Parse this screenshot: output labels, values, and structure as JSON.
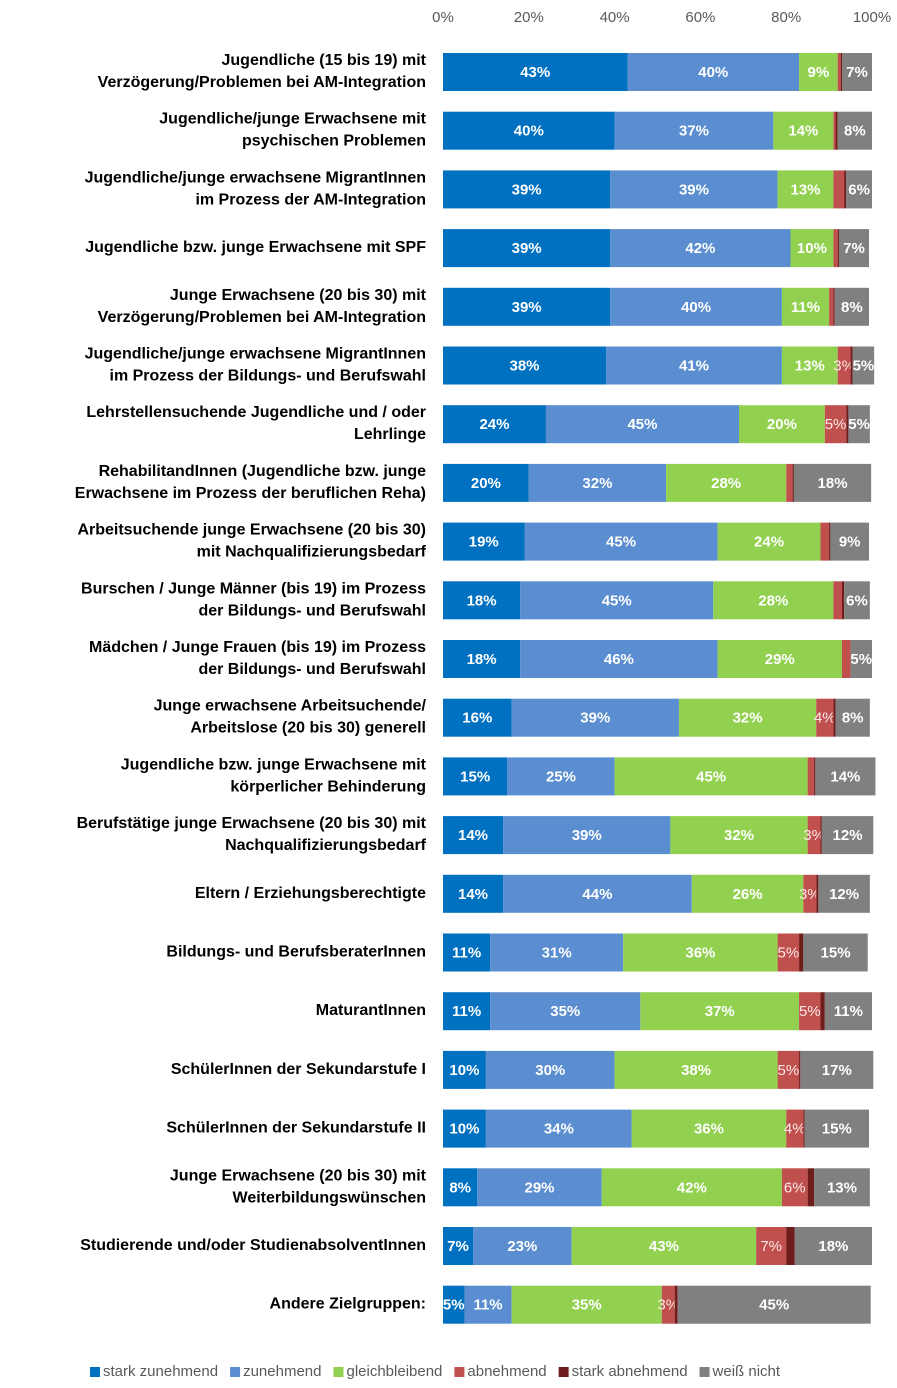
{
  "chart_data": {
    "type": "stacked-bar-horizontal",
    "categories": [
      "Jugendliche (15 bis 19) mit\nVerzögerung/Problemen bei AM-Integration",
      "Jugendliche/junge Erwachsene mit\npsychischen Problemen",
      "Jugendliche/junge erwachsene MigrantInnen\nim Prozess der AM-Integration",
      "Jugendliche bzw. junge Erwachsene mit SPF",
      "Junge Erwachsene (20 bis 30) mit\nVerzögerung/Problemen bei AM-Integration",
      "Jugendliche/junge erwachsene MigrantInnen\nim Prozess der Bildungs- und Berufswahl",
      "Lehrstellensuchende Jugendliche und / oder\nLehrlinge",
      "RehabilitandInnen (Jugendliche bzw. junge\nErwachsene im Prozess der beruflichen Reha)",
      "Arbeitsuchende junge Erwachsene (20 bis 30)\nmit Nachqualifizierungsbedarf",
      "Burschen / Junge Männer (bis 19) im Prozess\nder Bildungs- und Berufswahl",
      "Mädchen / Junge Frauen (bis 19) im Prozess\nder Bildungs- und Berufswahl",
      "Junge erwachsene Arbeitsuchende/\nArbeitslose (20 bis 30) generell",
      "Jugendliche bzw. junge Erwachsene mit\nkörperlicher Behinderung",
      "Berufstätige junge Erwachsene (20 bis 30) mit\nNachqualifizierungsbedarf",
      "Eltern / Erziehungsberechtigte",
      "Bildungs- und BerufsberaterInnen",
      "MaturantInnen",
      "SchülerInnen der Sekundarstufe I",
      "SchülerInnen der Sekundarstufe II",
      "Junge Erwachsene (20 bis 30) mit\nWeiterbildungswünschen",
      "Studierende und/oder StudienabsolventInnen",
      "Andere Zielgruppen:"
    ],
    "series": [
      {
        "name": "stark zunehmend",
        "color": "#0070c0",
        "values": [
          43,
          40,
          39,
          39,
          39,
          38,
          24,
          20,
          19,
          18,
          18,
          16,
          15,
          14,
          14,
          11,
          11,
          10,
          10,
          8,
          7,
          5
        ],
        "value_labels": [
          "43%",
          "40%",
          "39%",
          "39%",
          "39%",
          "38%",
          "24%",
          "20%",
          "19%",
          "18%",
          "18%",
          "16%",
          "15%",
          "14%",
          "14%",
          "11%",
          "11%",
          "10%",
          "10%",
          "8%",
          "7%",
          "5%"
        ]
      },
      {
        "name": "zunehmend",
        "color": "#5b8ed0",
        "values": [
          40,
          37,
          39,
          42,
          40,
          41,
          45,
          32,
          45,
          45,
          46,
          39,
          25,
          39,
          44,
          31,
          35,
          30,
          34,
          29,
          23,
          11
        ],
        "value_labels": [
          "40%",
          "37%",
          "39%",
          "42%",
          "40%",
          "41%",
          "45%",
          "32%",
          "45%",
          "45%",
          "46%",
          "39%",
          "25%",
          "39%",
          "44%",
          "31%",
          "35%",
          "30%",
          "34%",
          "29%",
          "23%",
          "11%"
        ]
      },
      {
        "name": "gleichbleibend",
        "color": "#92d050",
        "values": [
          9,
          14,
          13,
          10,
          11,
          13,
          20,
          28,
          24,
          28,
          29,
          32,
          45,
          32,
          26,
          36,
          37,
          38,
          36,
          42,
          43,
          35
        ],
        "value_labels": [
          "9%",
          "14%",
          "13%",
          "10%",
          "11%",
          "13%",
          "20%",
          "28%",
          "24%",
          "28%",
          "29%",
          "32%",
          "45%",
          "32%",
          "26%",
          "36%",
          "37%",
          "38%",
          "36%",
          "42%",
          "43%",
          "35%"
        ]
      },
      {
        "name": "abnehmend",
        "color": "#c0504d",
        "values": [
          0.7,
          0.5,
          2.5,
          1,
          1,
          3,
          5,
          1.5,
          2,
          2,
          2,
          4,
          1.5,
          3,
          3,
          5,
          5,
          5,
          4,
          6,
          7,
          3
        ],
        "value_labels": [
          null,
          null,
          null,
          null,
          null,
          "3%",
          "5%",
          null,
          null,
          null,
          null,
          "4%",
          null,
          "3%",
          "3%",
          "5%",
          "5%",
          "5%",
          "4%",
          "6%",
          "7%",
          "3%"
        ]
      },
      {
        "name": "stark abnehmend",
        "color": "#6e1c1c",
        "values": [
          0.3,
          0.5,
          0.5,
          0.3,
          0.3,
          0.5,
          0.5,
          0.3,
          0.3,
          0.5,
          0,
          0.5,
          0.3,
          0.3,
          0.5,
          1,
          1,
          0.3,
          0.3,
          1.5,
          2,
          0.7
        ],
        "value_labels": [
          null,
          null,
          null,
          null,
          null,
          null,
          null,
          null,
          null,
          null,
          null,
          null,
          null,
          null,
          null,
          null,
          null,
          null,
          null,
          null,
          null,
          null
        ]
      },
      {
        "name": "weiß nicht",
        "color": "#808080",
        "values": [
          7,
          8,
          6,
          7,
          8,
          5,
          5,
          18,
          9,
          6,
          5,
          8,
          14,
          12,
          12,
          15,
          11,
          17,
          15,
          13,
          18,
          45
        ],
        "value_labels": [
          "7%",
          "8%",
          "6%",
          "7%",
          "8%",
          "5%",
          "5%",
          "18%",
          "9%",
          "6%",
          "5%",
          "8%",
          "14%",
          "12%",
          "12%",
          "15%",
          "11%",
          "17%",
          "15%",
          "13%",
          "18%",
          "45%"
        ]
      }
    ],
    "xlim": [
      0,
      100
    ],
    "xticks": [
      {
        "value": 0,
        "label": "0%"
      },
      {
        "value": 20,
        "label": "20%"
      },
      {
        "value": 40,
        "label": "40%"
      },
      {
        "value": 60,
        "label": "60%"
      },
      {
        "value": 80,
        "label": "80%"
      },
      {
        "value": 100,
        "label": "100%"
      }
    ],
    "legend": "bottom"
  }
}
